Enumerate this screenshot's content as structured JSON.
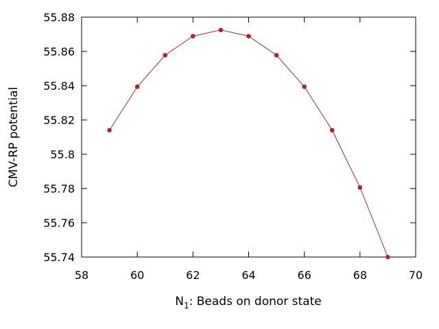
{
  "chart_data": {
    "type": "line",
    "title": "",
    "xlabel_main": "N",
    "xlabel_sub": "1",
    "xlabel_rest": ": Beads on donor state",
    "ylabel": "CMV-RP potential",
    "xlim": [
      58,
      70
    ],
    "ylim": [
      55.74,
      55.88
    ],
    "xticks": [
      58,
      60,
      62,
      64,
      66,
      68,
      70
    ],
    "yticks": [
      55.74,
      55.76,
      55.78,
      55.8,
      55.82,
      55.84,
      55.86,
      55.88
    ],
    "ytick_labels": [
      "55.74",
      "55.76",
      "55.78",
      "55.8",
      "55.82",
      "55.84",
      "55.86",
      "55.88"
    ],
    "grid": false,
    "series": [
      {
        "color": "#a52a2a",
        "x": [
          59,
          60,
          61,
          62,
          63,
          64,
          65,
          66,
          67,
          68,
          69
        ],
        "y": [
          55.814,
          55.8394,
          55.8578,
          55.8689,
          55.8725,
          55.8689,
          55.8578,
          55.8394,
          55.814,
          55.7806,
          55.74
        ]
      }
    ]
  }
}
